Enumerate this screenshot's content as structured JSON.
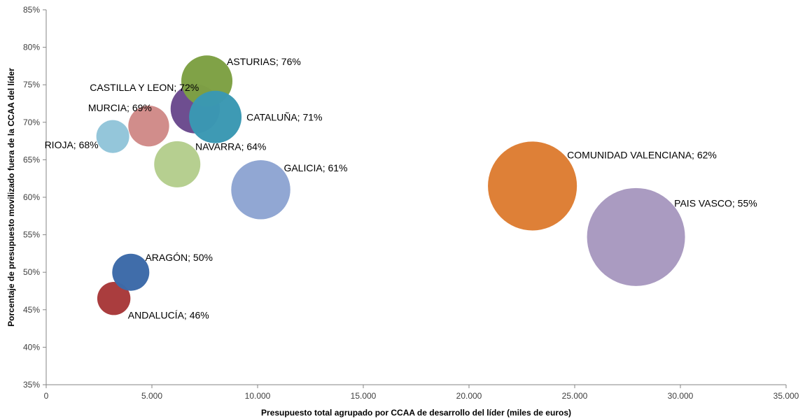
{
  "chart_data": {
    "type": "bubble",
    "xlabel": "Presupuesto total agrupado por CCAA de desarrollo del líder (miles de euros)",
    "ylabel": "Porcentaje de presupuesto movilizado fuera de la CCAA del líder",
    "xlim": [
      0,
      35000
    ],
    "ylim": [
      0.35,
      0.85
    ],
    "x_ticks": [
      0,
      5000,
      10000,
      15000,
      20000,
      25000,
      30000,
      35000
    ],
    "x_tick_labels": [
      "0",
      "5.000",
      "10.000",
      "15.000",
      "20.000",
      "25.000",
      "30.000",
      "35.000"
    ],
    "y_ticks": [
      0.35,
      0.4,
      0.45,
      0.5,
      0.55,
      0.6,
      0.65,
      0.7,
      0.75,
      0.8,
      0.85
    ],
    "y_tick_labels": [
      "35%",
      "40%",
      "45%",
      "50%",
      "55%",
      "60%",
      "65%",
      "70%",
      "75%",
      "80%",
      "85%"
    ],
    "grid": false,
    "legend": "none",
    "points": [
      {
        "label": "RIOJA; 68%",
        "x": 3150,
        "y": 0.681,
        "size": 3150,
        "color": "#92c5d9",
        "label_pos": "left"
      },
      {
        "label": "ANDALUCÍA; 46%",
        "x": 3200,
        "y": 0.465,
        "size": 3200,
        "color": "#a8393a",
        "label_pos": "below-right"
      },
      {
        "label": "ARAGÓN; 50%",
        "x": 4000,
        "y": 0.5,
        "size": 4000,
        "color": "#3c6aa8",
        "label_pos": "above-right"
      },
      {
        "label": "MURCIA; 69%",
        "x": 4850,
        "y": 0.695,
        "size": 4850,
        "color": "#d08b89",
        "label_pos": "above-left"
      },
      {
        "label": "NAVARRA; 64%",
        "x": 6200,
        "y": 0.644,
        "size": 6200,
        "color": "#b5ce8e",
        "label_pos": "above-right"
      },
      {
        "label": "CASTILLA Y LEON; 72%",
        "x": 7050,
        "y": 0.718,
        "size": 7050,
        "color": "#6b4a8e",
        "label_pos": "above-left"
      },
      {
        "label": "ASTURIAS; 76%",
        "x": 7600,
        "y": 0.755,
        "size": 7600,
        "color": "#7da043",
        "label_pos": "above-right"
      },
      {
        "label": "CATALUÑA; 71%",
        "x": 8000,
        "y": 0.707,
        "size": 8000,
        "color": "#3a98b2",
        "label_pos": "right"
      },
      {
        "label": "GALICIA; 61%",
        "x": 10150,
        "y": 0.61,
        "size": 10150,
        "color": "#8fa5d2",
        "label_pos": "above-right"
      },
      {
        "label": "COMUNIDAD VALENCIANA; 62%",
        "x": 23000,
        "y": 0.615,
        "size": 23000,
        "color": "#dd7d33",
        "label_pos": "above-right"
      },
      {
        "label": "PAIS VASCO; 55%",
        "x": 27900,
        "y": 0.547,
        "size": 27900,
        "color": "#a899c0",
        "label_pos": "above-right"
      }
    ]
  }
}
